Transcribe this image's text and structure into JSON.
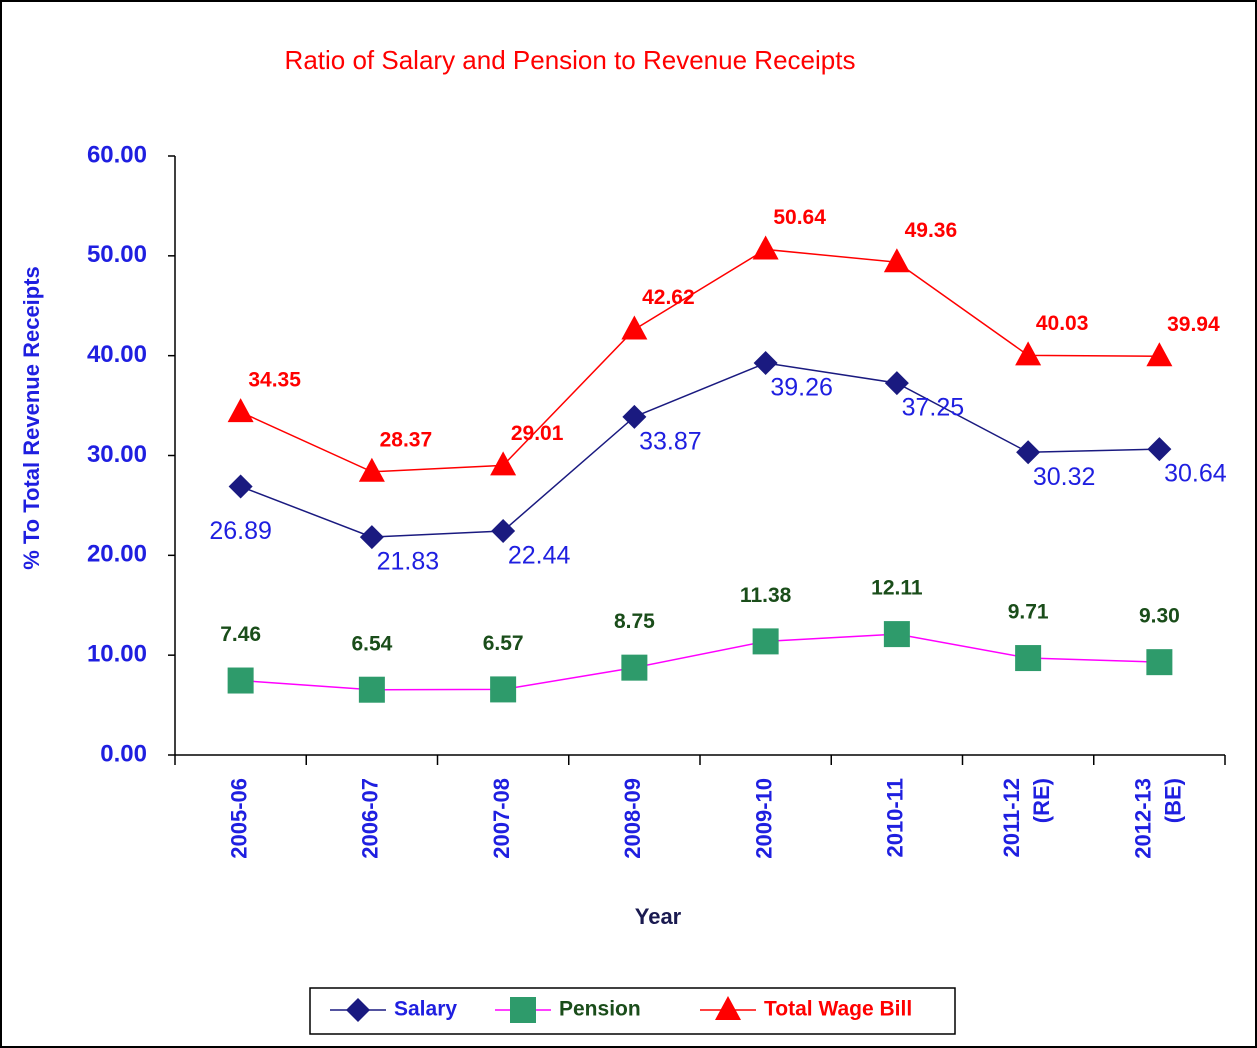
{
  "chart_data": {
    "type": "line",
    "title": "Ratio of Salary and Pension to Revenue Receipts",
    "y_label": "% To Total Revenue Receipts",
    "x_label": "Year",
    "categories": [
      "2005-06",
      "2006-07",
      "2007-08",
      "2008-09",
      "2009-10",
      "2010-11",
      "2011-12 (RE)",
      "2012-13 (BE)"
    ],
    "series": [
      {
        "name": "Salary",
        "color": "#1a1a80",
        "marker": "diamond",
        "label_color": "#1f1fe0",
        "values": [
          26.89,
          21.83,
          22.44,
          33.87,
          39.26,
          37.25,
          30.32,
          30.64
        ],
        "value_labels": [
          "26.89",
          "21.83",
          "22.44",
          "33.87",
          "39.26",
          "37.25",
          "30.32",
          "30.64"
        ]
      },
      {
        "name": "Pension",
        "color": "#ff00ff",
        "marker_color": "#2e9b6b",
        "marker": "square",
        "label_color": "#1a4d1a",
        "values": [
          7.46,
          6.54,
          6.57,
          8.75,
          11.38,
          12.11,
          9.71,
          9.3
        ],
        "value_labels": [
          "7.46",
          "6.54",
          "6.57",
          "8.75",
          "11.38",
          "12.11",
          "9.71",
          "9.30"
        ]
      },
      {
        "name": "Total Wage Bill",
        "color": "#ff0000",
        "marker": "triangle",
        "label_color": "#ff0000",
        "values": [
          34.35,
          28.37,
          29.01,
          42.62,
          50.64,
          49.36,
          40.03,
          39.94
        ],
        "value_labels": [
          "34.35",
          "28.37",
          "29.01",
          "42.62",
          "50.64",
          "49.36",
          "40.03",
          "39.94"
        ]
      }
    ],
    "ylim": [
      0,
      60
    ],
    "yticks": [
      {
        "value": 0,
        "label": "0.00"
      },
      {
        "value": 10,
        "label": "10.00"
      },
      {
        "value": 20,
        "label": "20.00"
      },
      {
        "value": 30,
        "label": "30.00"
      },
      {
        "value": 40,
        "label": "40.00"
      },
      {
        "value": 50,
        "label": "50.00"
      },
      {
        "value": 60,
        "label": "60.00"
      }
    ],
    "grid": false,
    "legend": "bottom"
  }
}
